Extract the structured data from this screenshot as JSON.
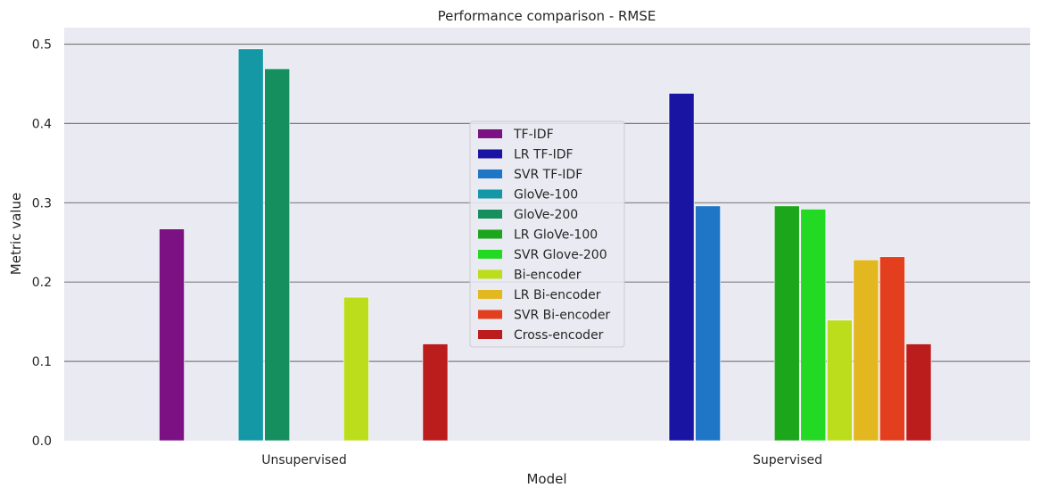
{
  "chart_data": {
    "type": "bar",
    "title": "Performance comparison - RMSE",
    "xlabel": "Model",
    "ylabel": "Metric value",
    "categories": [
      "Unsupervised",
      "Supervised"
    ],
    "ylim": [
      0,
      0.52
    ],
    "yticks": [
      "0.0",
      "0.1",
      "0.2",
      "0.3",
      "0.4",
      "0.5"
    ],
    "grid": true,
    "legend_position": "center",
    "series": [
      {
        "name": "TF-IDF",
        "color": "#7b1182",
        "values": [
          0.267,
          null
        ]
      },
      {
        "name": "LR TF-IDF",
        "color": "#1a14a3",
        "values": [
          null,
          0.438
        ]
      },
      {
        "name": "SVR TF-IDF",
        "color": "#1f76c7",
        "values": [
          null,
          0.296
        ]
      },
      {
        "name": "GloVe-100",
        "color": "#1598a6",
        "values": [
          0.494,
          null
        ]
      },
      {
        "name": "GloVe-200",
        "color": "#148f5d",
        "values": [
          0.469,
          null
        ]
      },
      {
        "name": "LR GloVe-100",
        "color": "#1ca61c",
        "values": [
          null,
          0.296
        ]
      },
      {
        "name": "SVR Glove-200",
        "color": "#23d923",
        "values": [
          null,
          0.292
        ]
      },
      {
        "name": "Bi-encoder",
        "color": "#bcdd1c",
        "values": [
          0.181,
          0.152
        ]
      },
      {
        "name": "LR Bi-encoder",
        "color": "#e3b720",
        "values": [
          null,
          0.228
        ]
      },
      {
        "name": "SVR Bi-encoder",
        "color": "#e33f1f",
        "values": [
          null,
          0.232
        ]
      },
      {
        "name": "Cross-encoder",
        "color": "#bb1c1c",
        "values": [
          0.122,
          0.122
        ]
      }
    ]
  }
}
